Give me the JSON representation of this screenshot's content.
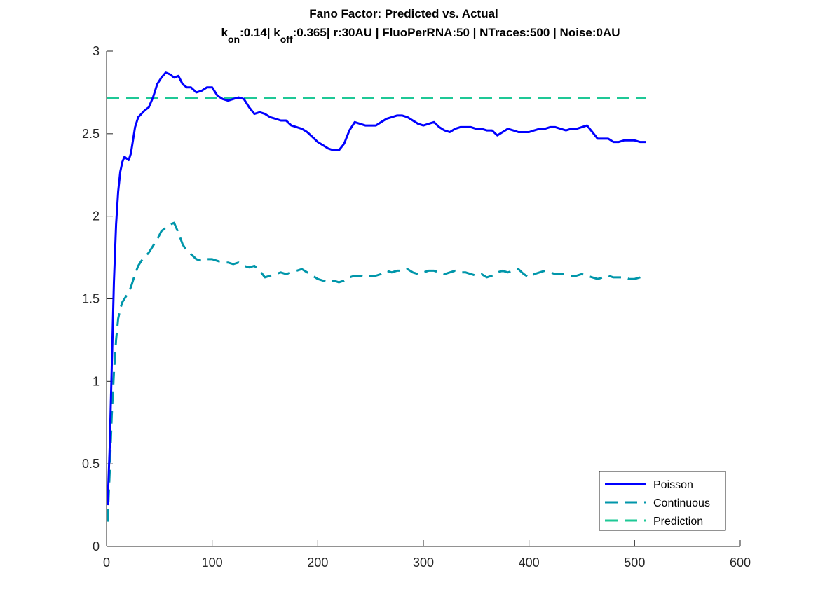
{
  "chart_data": {
    "type": "line",
    "title": "Fano Factor: Predicted vs. Actual",
    "subtitle_parts": {
      "k1": "k",
      "k1_sub": "on",
      "k1_rest": ":0.14| ",
      "k2": "k",
      "k2_sub": "off",
      "k2_rest": ":0.365| r:30AU | FluoPerRNA:50 | NTraces:500 | Noise:0AU"
    },
    "xlabel": "",
    "ylabel": "",
    "xlim": [
      0,
      600
    ],
    "ylim": [
      0,
      3
    ],
    "xticks": [
      0,
      100,
      200,
      300,
      400,
      500,
      600
    ],
    "yticks": [
      0,
      0.5,
      1,
      1.5,
      2,
      2.5,
      3
    ],
    "xtick_labels": [
      "0",
      "100",
      "200",
      "300",
      "400",
      "500",
      "600"
    ],
    "ytick_labels": [
      "0",
      "0.5",
      "1",
      "1.5",
      "2",
      "2.5",
      "3"
    ],
    "grid": false,
    "legend_position": "bottom-right",
    "series": [
      {
        "name": "Poisson",
        "style": "solid",
        "color": "#0000ff",
        "x": [
          1,
          3,
          5,
          7,
          9,
          11,
          13,
          15,
          17,
          19,
          21,
          23,
          25,
          27,
          30,
          33,
          36,
          40,
          44,
          48,
          52,
          56,
          60,
          64,
          68,
          72,
          76,
          80,
          85,
          90,
          95,
          100,
          105,
          110,
          115,
          120,
          125,
          130,
          135,
          140,
          145,
          150,
          155,
          160,
          165,
          170,
          175,
          180,
          185,
          190,
          195,
          200,
          205,
          210,
          215,
          220,
          225,
          230,
          235,
          240,
          245,
          250,
          255,
          260,
          265,
          270,
          275,
          280,
          285,
          290,
          295,
          300,
          305,
          310,
          315,
          320,
          325,
          330,
          335,
          340,
          345,
          350,
          355,
          360,
          365,
          370,
          375,
          380,
          385,
          390,
          395,
          400,
          405,
          410,
          415,
          420,
          425,
          430,
          435,
          440,
          445,
          450,
          455,
          460,
          465,
          470,
          475,
          480,
          485,
          490,
          495,
          500,
          505,
          511
        ],
        "values": [
          0.25,
          0.6,
          1.1,
          1.6,
          1.95,
          2.15,
          2.27,
          2.33,
          2.36,
          2.35,
          2.34,
          2.38,
          2.46,
          2.54,
          2.6,
          2.62,
          2.64,
          2.66,
          2.72,
          2.8,
          2.84,
          2.87,
          2.86,
          2.84,
          2.85,
          2.8,
          2.78,
          2.78,
          2.75,
          2.76,
          2.78,
          2.78,
          2.73,
          2.71,
          2.7,
          2.71,
          2.72,
          2.71,
          2.66,
          2.62,
          2.63,
          2.62,
          2.6,
          2.59,
          2.58,
          2.58,
          2.55,
          2.54,
          2.53,
          2.51,
          2.48,
          2.45,
          2.43,
          2.41,
          2.4,
          2.4,
          2.44,
          2.52,
          2.57,
          2.56,
          2.55,
          2.55,
          2.55,
          2.57,
          2.59,
          2.6,
          2.61,
          2.61,
          2.6,
          2.58,
          2.56,
          2.55,
          2.56,
          2.57,
          2.54,
          2.52,
          2.51,
          2.53,
          2.54,
          2.54,
          2.54,
          2.53,
          2.53,
          2.52,
          2.52,
          2.49,
          2.51,
          2.53,
          2.52,
          2.51,
          2.51,
          2.51,
          2.52,
          2.53,
          2.53,
          2.54,
          2.54,
          2.53,
          2.52,
          2.53,
          2.53,
          2.54,
          2.55,
          2.51,
          2.47,
          2.47,
          2.47,
          2.45,
          2.45,
          2.46,
          2.46,
          2.46,
          2.45,
          2.45
        ]
      },
      {
        "name": "Continuous",
        "style": "dashed",
        "color": "#0096aa",
        "x": [
          1,
          3,
          5,
          7,
          9,
          11,
          13,
          15,
          17,
          19,
          21,
          23,
          25,
          27,
          30,
          33,
          36,
          40,
          44,
          48,
          52,
          56,
          60,
          64,
          68,
          72,
          76,
          80,
          85,
          90,
          95,
          100,
          105,
          110,
          115,
          120,
          125,
          130,
          135,
          140,
          145,
          150,
          155,
          160,
          165,
          170,
          175,
          180,
          185,
          190,
          195,
          200,
          205,
          210,
          215,
          220,
          225,
          230,
          235,
          240,
          245,
          250,
          255,
          260,
          265,
          270,
          275,
          280,
          285,
          290,
          295,
          300,
          305,
          310,
          315,
          320,
          325,
          330,
          335,
          340,
          345,
          350,
          355,
          360,
          365,
          370,
          375,
          380,
          385,
          390,
          395,
          400,
          405,
          410,
          415,
          420,
          425,
          430,
          435,
          440,
          445,
          450,
          455,
          460,
          465,
          470,
          475,
          480,
          485,
          490,
          495,
          500,
          505,
          511
        ],
        "values": [
          0.15,
          0.45,
          0.8,
          1.05,
          1.25,
          1.38,
          1.44,
          1.48,
          1.5,
          1.52,
          1.54,
          1.57,
          1.61,
          1.65,
          1.7,
          1.73,
          1.75,
          1.78,
          1.82,
          1.86,
          1.91,
          1.93,
          1.95,
          1.96,
          1.9,
          1.83,
          1.79,
          1.77,
          1.74,
          1.73,
          1.74,
          1.74,
          1.73,
          1.72,
          1.72,
          1.71,
          1.72,
          1.7,
          1.69,
          1.7,
          1.67,
          1.63,
          1.64,
          1.65,
          1.66,
          1.65,
          1.66,
          1.67,
          1.68,
          1.66,
          1.64,
          1.62,
          1.61,
          1.6,
          1.61,
          1.6,
          1.61,
          1.63,
          1.64,
          1.64,
          1.63,
          1.64,
          1.64,
          1.65,
          1.67,
          1.66,
          1.67,
          1.67,
          1.68,
          1.66,
          1.65,
          1.66,
          1.67,
          1.67,
          1.66,
          1.65,
          1.66,
          1.67,
          1.66,
          1.66,
          1.65,
          1.64,
          1.65,
          1.63,
          1.64,
          1.66,
          1.67,
          1.66,
          1.67,
          1.68,
          1.65,
          1.63,
          1.65,
          1.66,
          1.67,
          1.66,
          1.65,
          1.65,
          1.65,
          1.64,
          1.64,
          1.65,
          1.64,
          1.63,
          1.62,
          1.63,
          1.64,
          1.63,
          1.63,
          1.63,
          1.62,
          1.62,
          1.63,
          1.65
        ]
      },
      {
        "name": "Prediction",
        "style": "dashed",
        "color": "#1ec896",
        "x": [
          0,
          511
        ],
        "values": [
          2.715,
          2.715
        ]
      }
    ]
  }
}
